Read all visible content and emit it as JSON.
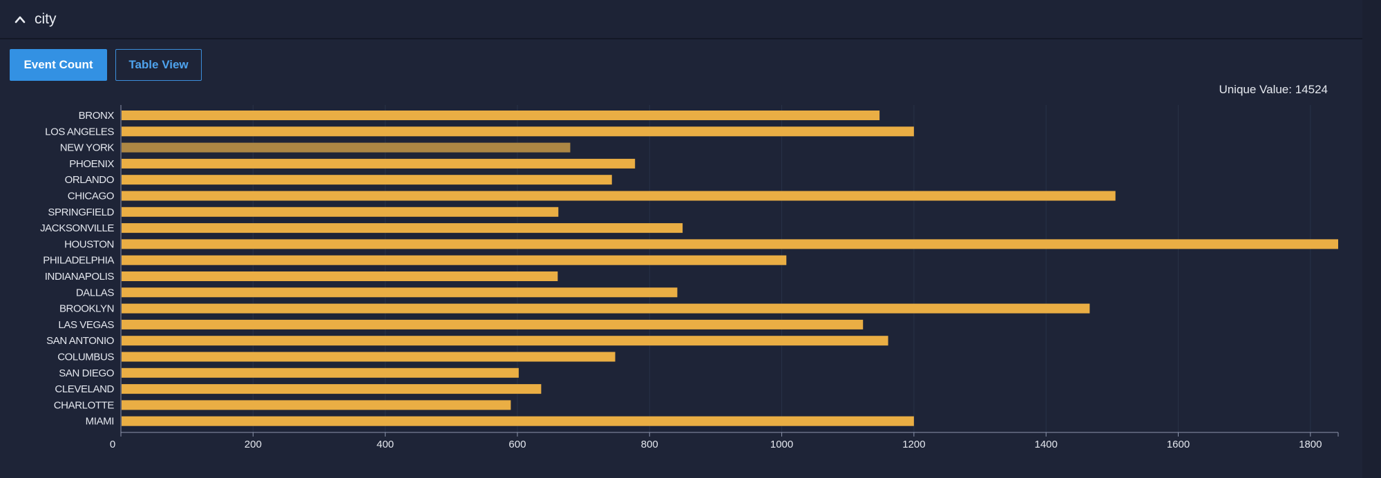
{
  "header": {
    "title": "city",
    "toggle_icon": "chevron-up-icon"
  },
  "tabs": {
    "event_count_label": "Event Count",
    "table_view_label": "Table View"
  },
  "summary": {
    "unique_value_text": "Unique Value: 14524"
  },
  "colors": {
    "bar": "#eaae44",
    "bar_highlight": "#ad8744",
    "grid": "#283247",
    "axis": "#8d95ad",
    "primary": "#3391e3"
  },
  "chart_data": {
    "type": "bar",
    "orientation": "horizontal",
    "categories": [
      "BRONX",
      "LOS ANGELES",
      "NEW YORK",
      "PHOENIX",
      "ORLANDO",
      "CHICAGO",
      "SPRINGFIELD",
      "JACKSONVILLE",
      "HOUSTON",
      "PHILADELPHIA",
      "INDIANAPOLIS",
      "DALLAS",
      "BROOKLYN",
      "LAS VEGAS",
      "SAN ANTONIO",
      "COLUMBUS",
      "SAN DIEGO",
      "CLEVELAND",
      "CHARLOTTE",
      "MIAMI"
    ],
    "values": [
      1148,
      1200,
      680,
      778,
      743,
      1505,
      662,
      850,
      1842,
      1007,
      661,
      842,
      1466,
      1123,
      1161,
      748,
      602,
      636,
      590,
      1200
    ],
    "highlighted_category": "NEW YORK",
    "xlim": [
      0,
      1842
    ],
    "x_ticks": [
      0,
      200,
      400,
      600,
      800,
      1000,
      1200,
      1400,
      1600,
      1800
    ],
    "grid": true,
    "title": "",
    "xlabel": "",
    "ylabel": ""
  }
}
